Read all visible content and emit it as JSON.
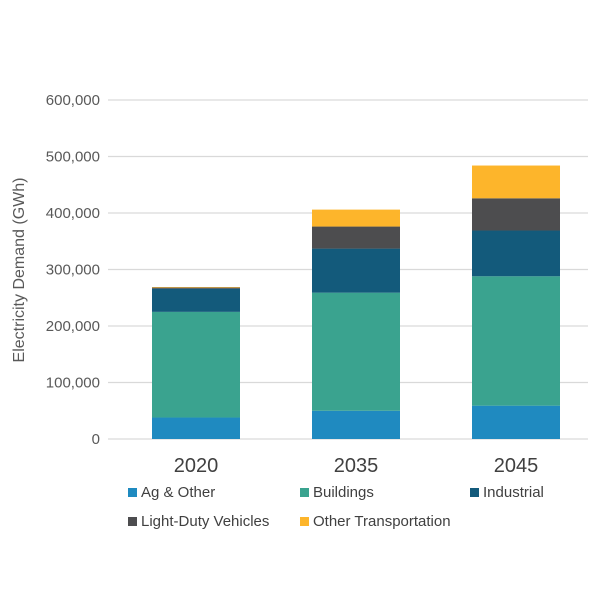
{
  "chart_data": {
    "type": "bar",
    "stacked": true,
    "title": "",
    "xlabel": "",
    "ylabel": "Electricity Demand (GWh)",
    "ylim": [
      0,
      600000
    ],
    "yticks": [
      0,
      100000,
      200000,
      300000,
      400000,
      500000,
      600000
    ],
    "ytick_labels": [
      "0",
      "100,000",
      "200,000",
      "300,000",
      "400,000",
      "500,000",
      "600,000"
    ],
    "grid": true,
    "legend_position": "bottom",
    "categories": [
      "2020",
      "2035",
      "2045"
    ],
    "series": [
      {
        "name": "Ag & Other",
        "color": "#1F8AC0",
        "values": [
          38000,
          50000,
          59000
        ]
      },
      {
        "name": "Buildings",
        "color": "#3AA38F",
        "values": [
          187000,
          209000,
          229000
        ]
      },
      {
        "name": "Industrial",
        "color": "#135A7B",
        "values": [
          41000,
          78000,
          81000
        ]
      },
      {
        "name": "Light-Duty Vehicles",
        "color": "#4D4D4F",
        "values": [
          2000,
          39000,
          57000
        ]
      },
      {
        "name": "Other Transportation",
        "color": "#FDB52B",
        "values": [
          1000,
          30000,
          58000
        ]
      }
    ]
  }
}
